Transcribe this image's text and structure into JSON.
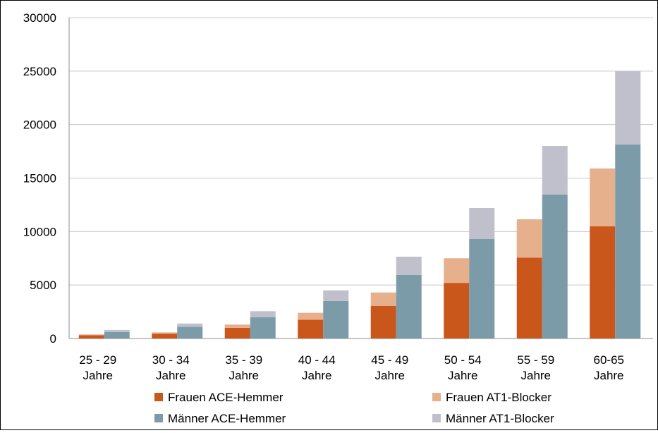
{
  "chart_data": {
    "type": "bar",
    "stacked": true,
    "categories": [
      [
        "25 - 29",
        "Jahre"
      ],
      [
        "30 - 34",
        "Jahre"
      ],
      [
        "35 - 39",
        "Jahre"
      ],
      [
        "40 - 44",
        "Jahre"
      ],
      [
        "45 - 49",
        "Jahre"
      ],
      [
        "50 - 54",
        "Jahre"
      ],
      [
        "55 - 59",
        "Jahre"
      ],
      [
        "60-65",
        "Jahre"
      ]
    ],
    "groups": [
      {
        "key": "frauen",
        "series": [
          {
            "name": "Frauen ACE-Hemmer",
            "color": "#c9561a",
            "values": [
              300,
              450,
              1000,
              1750,
              3050,
              5200,
              7550,
              10500
            ]
          },
          {
            "name": "Frauen AT1-Blocker",
            "color": "#e6b08c",
            "values": [
              80,
              120,
              300,
              650,
              1250,
              2300,
              3600,
              5400
            ]
          }
        ]
      },
      {
        "key": "maenner",
        "series": [
          {
            "name": "Männer ACE-Hemmer",
            "color": "#7b9ba8",
            "values": [
              600,
              1100,
              2000,
              3500,
              5950,
              9300,
              13450,
              18150
            ]
          },
          {
            "name": "Männer AT1-Blocker",
            "color": "#c0bfcc",
            "values": [
              200,
              300,
              550,
              1000,
              1700,
              2900,
              4550,
              6850
            ]
          }
        ]
      }
    ],
    "ylim": [
      0,
      30000
    ],
    "yticks": [
      0,
      5000,
      10000,
      15000,
      20000,
      25000,
      30000
    ],
    "grid": true,
    "legend": {
      "position": "bottom",
      "entries": [
        "Frauen ACE-Hemmer",
        "Frauen AT1-Blocker",
        "Männer ACE-Hemmer",
        "Männer AT1-Blocker"
      ]
    }
  }
}
